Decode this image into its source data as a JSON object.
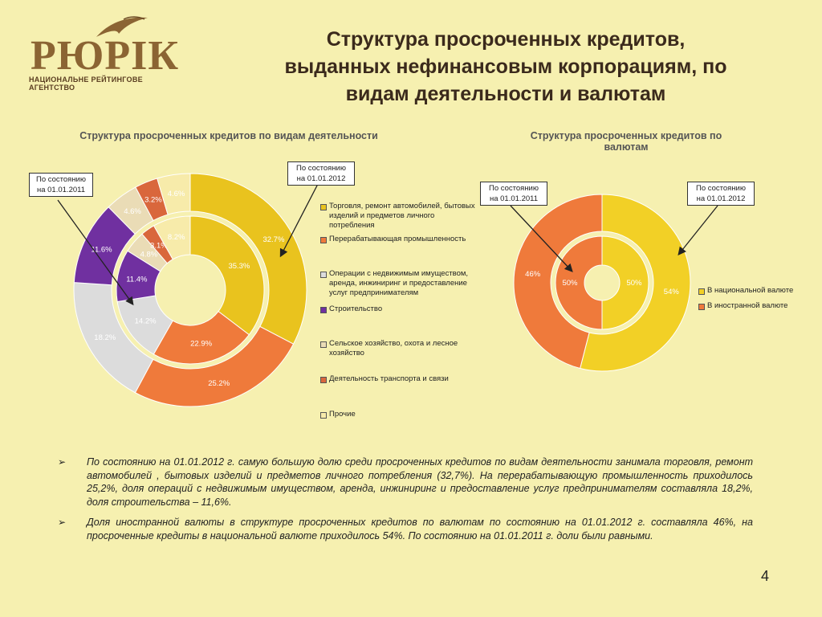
{
  "logo": {
    "name": "РЮРІК",
    "subtitle": "НАЦИОНАЛЬНЕ РЕЙТИНГОВЕ АГЕНТСТВО"
  },
  "slide": {
    "title_lines": [
      "Структура просроченных кредитов,",
      "выданных нефинансовым корпорациям, по",
      "видам деятельности и валютам"
    ],
    "page_number": "4"
  },
  "colors": {
    "trade": "#e9c31e",
    "processing": "#ef7a3b",
    "realestate": "#dcdcdc",
    "construction": "#7030a0",
    "agriculture": "#eadcb6",
    "transport": "#d9673c",
    "other": "#f7ebaa",
    "national": "#f2d026",
    "foreign": "#ef7a3b"
  },
  "chart_data": [
    {
      "type": "pie",
      "subtype": "doughnut",
      "title": "Структура просроченных кредитов по видам деятельности",
      "categories": [
        "Торговля, ремонт автомобилей, бытовых изделий и предметов личного потребления",
        "Перерабатывающая промышленность",
        "Операции с недвижимым имуществом, аренда, инжиниринг и предоставление услуг предпринимателям",
        "Строительство",
        "Сельское хозяйство, охота и лесное хозяйство",
        "Деятельность транспорта и связи",
        "Прочие"
      ],
      "series": [
        {
          "name": "По состоянию на 01.01.2011",
          "ring": "inner",
          "values": [
            35.3,
            22.9,
            14.2,
            11.4,
            4.8,
            3.1,
            8.2
          ],
          "labels": [
            "35.3%",
            "22.9%",
            "14.2%",
            "11.4%",
            "4.8%",
            "3.1%",
            "8.2%"
          ]
        },
        {
          "name": "По состоянию на 01.01.2012",
          "ring": "outer",
          "values": [
            32.7,
            25.2,
            18.2,
            11.6,
            4.6,
            3.2,
            4.6
          ],
          "labels": [
            "32.7%",
            "25.2%",
            "18.2%",
            "11.6%",
            "4.6%",
            "3.2%",
            "4.6%"
          ]
        }
      ],
      "legend_position": "right",
      "callouts": {
        "inner": [
          "По состоянию",
          "на 01.01.2011"
        ],
        "outer": [
          "По состоянию",
          "на 01.01.2012"
        ]
      }
    },
    {
      "type": "pie",
      "subtype": "doughnut",
      "title": "Структура просроченных кредитов по валютам",
      "categories": [
        "В национальной валюте",
        "В иностранной валюте"
      ],
      "series": [
        {
          "name": "По состоянию на 01.01.2011",
          "ring": "inner",
          "values": [
            50,
            50
          ],
          "labels": [
            "50%",
            "50%"
          ]
        },
        {
          "name": "По состоянию на 01.01.2012",
          "ring": "outer",
          "values": [
            54,
            46
          ],
          "labels": [
            "54%",
            "46%"
          ]
        }
      ],
      "legend_position": "right",
      "callouts": {
        "inner": [
          "По состоянию",
          "на 01.01.2011"
        ],
        "outer": [
          "По состоянию",
          "на 01.01.2012"
        ]
      }
    }
  ],
  "chart_titles": {
    "activity": "Структура просроченных кредитов по видам деятельности",
    "currency_line1": "Структура просроченных кредитов по",
    "currency_line2": "валютам"
  },
  "bullets": [
    "По состоянию на 01.01.2012 г. самую большую долю среди просроченных кредитов по видам деятельности занимала торговля, ремонт автомобилей , бытовых изделий и предметов личного потребления (32,7%). На перерабатывающую промышленность приходилось 25,2%, доля операций с недвижимым имуществом, аренда, инжиниринг и предоставление услуг предпринимателям составляла 18,2%, доля строительства – 11,6%.",
    "Доля иностранной валюты в структуре просроченных кредитов по валютам по состоянию на 01.01.2012 г. составляла 46%, на просроченные кредиты в национальной валюте приходилось 54%. По состоянию на 01.01.2011 г. доли были равными."
  ],
  "bullet_marker": "➢"
}
